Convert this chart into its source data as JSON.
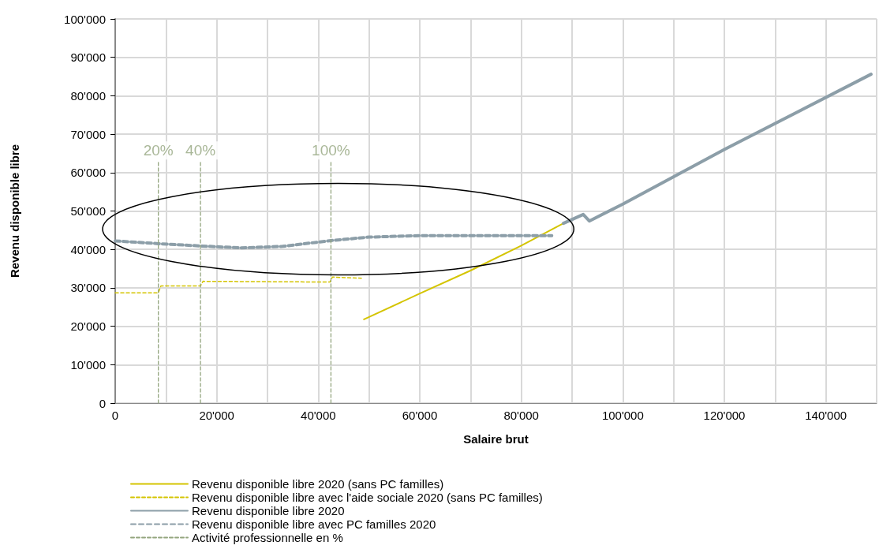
{
  "chart_data": {
    "type": "line",
    "xlabel": "Salaire brut",
    "ylabel": "Revenu disponible libre",
    "xlim": [
      0,
      150000
    ],
    "ylim": [
      0,
      100000
    ],
    "xticks": [
      {
        "value": 0,
        "label": "0"
      },
      {
        "value": 10000,
        "label": null
      },
      {
        "value": 20000,
        "label": "20'000"
      },
      {
        "value": 30000,
        "label": null
      },
      {
        "value": 40000,
        "label": "40'000"
      },
      {
        "value": 50000,
        "label": null
      },
      {
        "value": 60000,
        "label": "60'000"
      },
      {
        "value": 70000,
        "label": null
      },
      {
        "value": 80000,
        "label": "80'000"
      },
      {
        "value": 90000,
        "label": null
      },
      {
        "value": 100000,
        "label": "100'000"
      },
      {
        "value": 110000,
        "label": null
      },
      {
        "value": 120000,
        "label": "120'000"
      },
      {
        "value": 130000,
        "label": null
      },
      {
        "value": 140000,
        "label": "140'000"
      },
      {
        "value": 150000,
        "label": null
      }
    ],
    "yticks": [
      {
        "value": 0,
        "label": "0"
      },
      {
        "value": 10000,
        "label": "10'000"
      },
      {
        "value": 20000,
        "label": "20'000"
      },
      {
        "value": 30000,
        "label": "30'000"
      },
      {
        "value": 40000,
        "label": "40'000"
      },
      {
        "value": 50000,
        "label": "50'000"
      },
      {
        "value": 60000,
        "label": "60'000"
      },
      {
        "value": 70000,
        "label": "70'000"
      },
      {
        "value": 80000,
        "label": "80'000"
      },
      {
        "value": 90000,
        "label": "90'000"
      },
      {
        "value": 100000,
        "label": "100'000"
      }
    ],
    "grid": true,
    "legend": "bottom",
    "marker": "none",
    "series": [
      {
        "name": "Revenu disponible libre 2020 (sans PC familles)",
        "color": "#d4c400",
        "line_style": "solid",
        "x": [
          49000,
          60000,
          70000,
          80000,
          88300
        ],
        "values": [
          21800,
          28500,
          34500,
          41000,
          46800
        ]
      },
      {
        "name": "Revenu disponible libre avec l'aide sociale 2020 (sans PC familles)",
        "color": "#d4c400",
        "line_style": "dashed",
        "x": [
          0,
          8500,
          9000,
          16800,
          17300,
          42300,
          42800,
          48500
        ],
        "values": [
          28700,
          28700,
          30500,
          30500,
          31700,
          31500,
          32800,
          32500
        ]
      },
      {
        "name": "Revenu disponible libre 2020",
        "color": "#8c9ea8",
        "line_style": "solid",
        "x": [
          88300,
          92200,
          93400,
          100000,
          120000,
          148900
        ],
        "values": [
          46800,
          49100,
          47400,
          51800,
          66000,
          85600
        ]
      },
      {
        "name": "Revenu disponible libre avec PC familles 2020",
        "color": "#8c9ea8",
        "line_style": "dashed",
        "x": [
          0,
          8500,
          16800,
          24800,
          33000,
          42500,
          50000,
          60000,
          86000
        ],
        "values": [
          42200,
          41500,
          40900,
          40400,
          40800,
          42300,
          43200,
          43600,
          43600
        ]
      },
      {
        "name": "Activité professionnelle en %",
        "color": "#93a57e",
        "line_style": "dashed",
        "x": [
          8500,
          8500,
          null,
          16800,
          16800,
          null,
          42500,
          42500
        ],
        "values": [
          0,
          63000,
          null,
          0,
          63000,
          null,
          0,
          63000
        ]
      }
    ],
    "annotations": [
      "20%",
      "40%",
      "100%"
    ]
  }
}
